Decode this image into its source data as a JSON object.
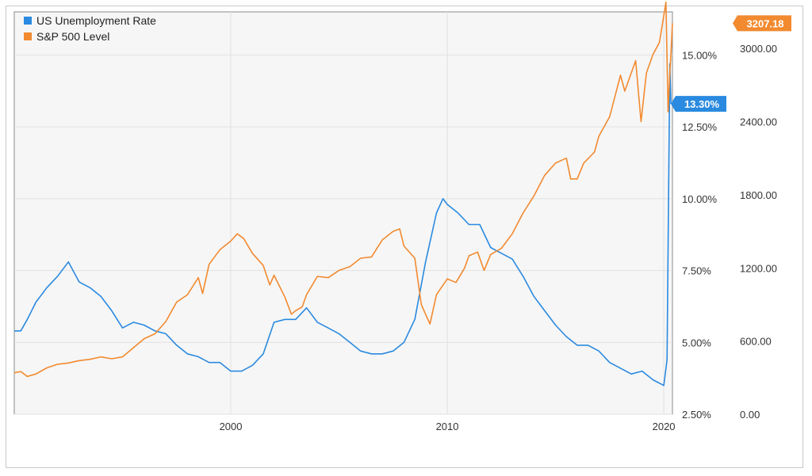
{
  "chart_data": {
    "type": "line",
    "title": "",
    "xlabel": "",
    "x_ticks": [
      "2000",
      "2010",
      "2020"
    ],
    "x_range": [
      1990.0,
      2020.4
    ],
    "legend_position": "top-left",
    "grid": true,
    "y_left": {
      "ticks": [
        "2.50%",
        "5.00%",
        "7.50%",
        "10.00%",
        "12.50%",
        "15.00%"
      ],
      "range": [
        2.5,
        16.5
      ]
    },
    "y_right": {
      "ticks": [
        "0.00",
        "600.00",
        "1200.00",
        "1800.00",
        "2400.00",
        "3000.00"
      ],
      "range": [
        0,
        3300
      ]
    },
    "series": [
      {
        "name": "US Unemployment Rate",
        "color": "#2a8ae0",
        "axis": "left",
        "end_label": "13.30%",
        "points": [
          [
            1990.0,
            5.4
          ],
          [
            1990.3,
            5.4
          ],
          [
            1990.6,
            5.8
          ],
          [
            1991.0,
            6.4
          ],
          [
            1991.5,
            6.9
          ],
          [
            1992.0,
            7.3
          ],
          [
            1992.5,
            7.8
          ],
          [
            1993.0,
            7.1
          ],
          [
            1993.5,
            6.9
          ],
          [
            1994.0,
            6.6
          ],
          [
            1994.5,
            6.1
          ],
          [
            1995.0,
            5.5
          ],
          [
            1995.5,
            5.7
          ],
          [
            1996.0,
            5.6
          ],
          [
            1996.5,
            5.4
          ],
          [
            1997.0,
            5.3
          ],
          [
            1997.5,
            4.9
          ],
          [
            1998.0,
            4.6
          ],
          [
            1998.5,
            4.5
          ],
          [
            1999.0,
            4.3
          ],
          [
            1999.5,
            4.3
          ],
          [
            2000.0,
            4.0
          ],
          [
            2000.5,
            4.0
          ],
          [
            2001.0,
            4.2
          ],
          [
            2001.5,
            4.6
          ],
          [
            2002.0,
            5.7
          ],
          [
            2002.5,
            5.8
          ],
          [
            2003.0,
            5.8
          ],
          [
            2003.5,
            6.2
          ],
          [
            2004.0,
            5.7
          ],
          [
            2004.5,
            5.5
          ],
          [
            2005.0,
            5.3
          ],
          [
            2005.5,
            5.0
          ],
          [
            2006.0,
            4.7
          ],
          [
            2006.5,
            4.6
          ],
          [
            2007.0,
            4.6
          ],
          [
            2007.5,
            4.7
          ],
          [
            2008.0,
            5.0
          ],
          [
            2008.5,
            5.8
          ],
          [
            2009.0,
            7.8
          ],
          [
            2009.5,
            9.5
          ],
          [
            2009.8,
            10.0
          ],
          [
            2010.0,
            9.8
          ],
          [
            2010.5,
            9.5
          ],
          [
            2011.0,
            9.1
          ],
          [
            2011.5,
            9.1
          ],
          [
            2012.0,
            8.3
          ],
          [
            2012.5,
            8.1
          ],
          [
            2013.0,
            7.9
          ],
          [
            2013.5,
            7.3
          ],
          [
            2014.0,
            6.6
          ],
          [
            2014.5,
            6.1
          ],
          [
            2015.0,
            5.6
          ],
          [
            2015.5,
            5.2
          ],
          [
            2016.0,
            4.9
          ],
          [
            2016.5,
            4.9
          ],
          [
            2017.0,
            4.7
          ],
          [
            2017.5,
            4.3
          ],
          [
            2018.0,
            4.1
          ],
          [
            2018.5,
            3.9
          ],
          [
            2019.0,
            4.0
          ],
          [
            2019.5,
            3.7
          ],
          [
            2020.0,
            3.5
          ],
          [
            2020.15,
            4.4
          ],
          [
            2020.28,
            14.7
          ],
          [
            2020.33,
            13.3
          ]
        ]
      },
      {
        "name": "S&P 500 Level",
        "color": "#f28a30",
        "axis": "right",
        "end_label": "3207.18",
        "points": [
          [
            1990.0,
            340
          ],
          [
            1990.3,
            350
          ],
          [
            1990.6,
            310
          ],
          [
            1991.0,
            330
          ],
          [
            1991.5,
            380
          ],
          [
            1992.0,
            410
          ],
          [
            1992.5,
            420
          ],
          [
            1993.0,
            440
          ],
          [
            1993.5,
            450
          ],
          [
            1994.0,
            470
          ],
          [
            1994.5,
            455
          ],
          [
            1995.0,
            470
          ],
          [
            1995.5,
            545
          ],
          [
            1996.0,
            620
          ],
          [
            1996.5,
            660
          ],
          [
            1997.0,
            760
          ],
          [
            1997.5,
            920
          ],
          [
            1998.0,
            980
          ],
          [
            1998.5,
            1120
          ],
          [
            1998.7,
            990
          ],
          [
            1999.0,
            1230
          ],
          [
            1999.5,
            1350
          ],
          [
            2000.0,
            1420
          ],
          [
            2000.3,
            1480
          ],
          [
            2000.6,
            1440
          ],
          [
            2001.0,
            1320
          ],
          [
            2001.5,
            1220
          ],
          [
            2001.8,
            1060
          ],
          [
            2002.0,
            1140
          ],
          [
            2002.5,
            960
          ],
          [
            2002.8,
            820
          ],
          [
            2003.0,
            850
          ],
          [
            2003.3,
            880
          ],
          [
            2003.5,
            980
          ],
          [
            2004.0,
            1130
          ],
          [
            2004.5,
            1120
          ],
          [
            2005.0,
            1180
          ],
          [
            2005.5,
            1210
          ],
          [
            2006.0,
            1280
          ],
          [
            2006.5,
            1290
          ],
          [
            2007.0,
            1430
          ],
          [
            2007.5,
            1500
          ],
          [
            2007.8,
            1520
          ],
          [
            2008.0,
            1380
          ],
          [
            2008.5,
            1280
          ],
          [
            2008.8,
            900
          ],
          [
            2009.0,
            820
          ],
          [
            2009.2,
            740
          ],
          [
            2009.5,
            980
          ],
          [
            2010.0,
            1110
          ],
          [
            2010.4,
            1080
          ],
          [
            2010.8,
            1200
          ],
          [
            2011.0,
            1300
          ],
          [
            2011.4,
            1330
          ],
          [
            2011.7,
            1180
          ],
          [
            2012.0,
            1310
          ],
          [
            2012.5,
            1360
          ],
          [
            2013.0,
            1480
          ],
          [
            2013.5,
            1650
          ],
          [
            2014.0,
            1790
          ],
          [
            2014.5,
            1960
          ],
          [
            2015.0,
            2060
          ],
          [
            2015.5,
            2100
          ],
          [
            2015.7,
            1930
          ],
          [
            2016.0,
            1930
          ],
          [
            2016.3,
            2060
          ],
          [
            2016.8,
            2150
          ],
          [
            2017.0,
            2280
          ],
          [
            2017.5,
            2440
          ],
          [
            2018.0,
            2780
          ],
          [
            2018.2,
            2650
          ],
          [
            2018.7,
            2900
          ],
          [
            2018.95,
            2400
          ],
          [
            2019.2,
            2800
          ],
          [
            2019.5,
            2950
          ],
          [
            2019.8,
            3050
          ],
          [
            2020.1,
            3380
          ],
          [
            2020.2,
            2480
          ],
          [
            2020.28,
            2800
          ],
          [
            2020.33,
            2950
          ],
          [
            2020.4,
            3207
          ]
        ]
      }
    ]
  }
}
